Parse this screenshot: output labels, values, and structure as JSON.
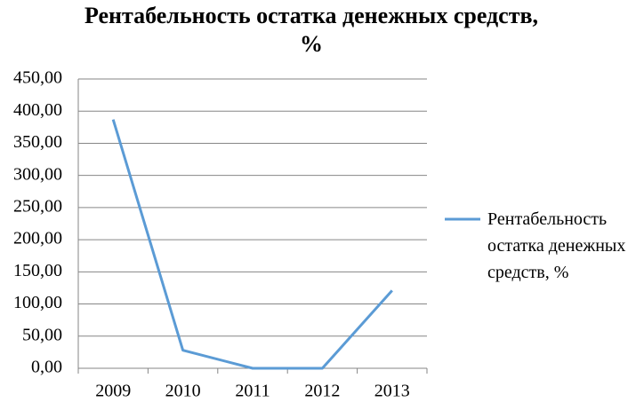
{
  "chart_data": {
    "type": "line",
    "title": "Рентабельность остатка денежных средств, %",
    "categories": [
      "2009",
      "2010",
      "2011",
      "2012",
      "2013"
    ],
    "series": [
      {
        "name": "Рентабельность остатка денежных средств, %",
        "color": "#5b9bd5",
        "values": [
          387,
          28,
          0,
          0,
          121
        ]
      }
    ],
    "ylim": [
      0,
      450
    ],
    "yticks": [
      {
        "value": 0,
        "label": "0,00"
      },
      {
        "value": 50,
        "label": "50,00"
      },
      {
        "value": 100,
        "label": "100,00"
      },
      {
        "value": 150,
        "label": "150,00"
      },
      {
        "value": 200,
        "label": "200,00"
      },
      {
        "value": 250,
        "label": "250,00"
      },
      {
        "value": 300,
        "label": "300,00"
      },
      {
        "value": 350,
        "label": "350,00"
      },
      {
        "value": 400,
        "label": "400,00"
      },
      {
        "value": 450,
        "label": "450,00"
      }
    ],
    "grid": true,
    "legend": "right"
  }
}
